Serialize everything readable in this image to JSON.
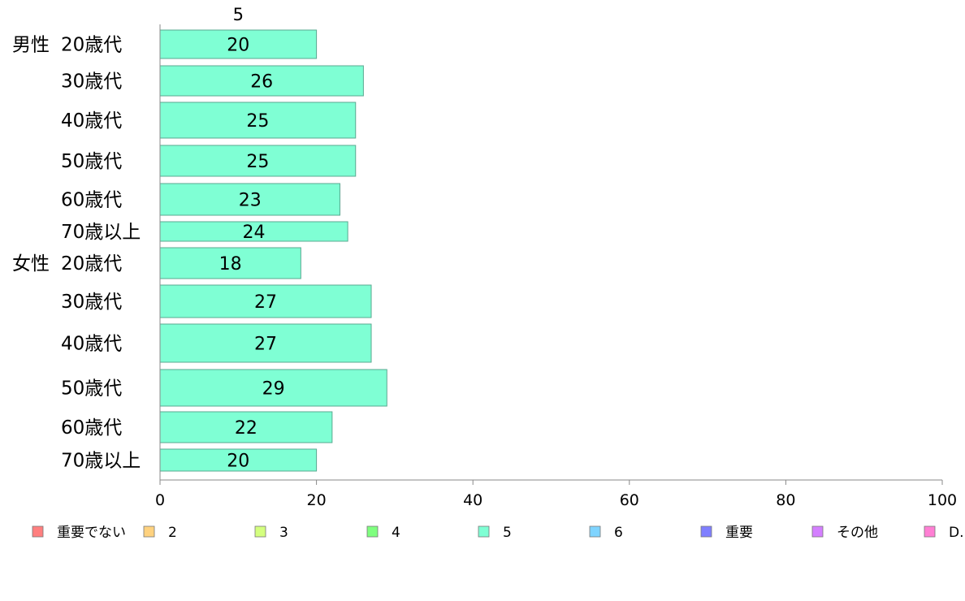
{
  "chart_data": {
    "type": "bar",
    "orientation": "horizontal",
    "stacked": true,
    "column_header": "5",
    "groups": [
      {
        "label": "男性",
        "categories": [
          "20歳代",
          "30歳代",
          "40歳代",
          "50歳代",
          "60歳代",
          "70歳以上"
        ]
      },
      {
        "label": "女性",
        "categories": [
          "20歳代",
          "30歳代",
          "40歳代",
          "50歳代",
          "60歳代",
          "70歳以上"
        ]
      }
    ],
    "series": [
      {
        "name": "重要でない",
        "color": "#ff7f7f",
        "values": [
          0,
          0,
          0,
          0,
          0,
          0,
          0,
          0,
          0,
          0,
          0,
          0
        ]
      },
      {
        "name": "2",
        "color": "#ffd27f",
        "values": [
          0,
          0,
          0,
          0,
          0,
          0,
          0,
          0,
          0,
          0,
          0,
          0
        ]
      },
      {
        "name": "3",
        "color": "#d4ff7f",
        "values": [
          0,
          0,
          0,
          0,
          0,
          0,
          0,
          0,
          0,
          0,
          0,
          0
        ]
      },
      {
        "name": "4",
        "color": "#7fff7f",
        "values": [
          0,
          0,
          0,
          0,
          0,
          0,
          0,
          0,
          0,
          0,
          0,
          0
        ]
      },
      {
        "name": "5",
        "color": "#7fffd4",
        "values": [
          20,
          26,
          25,
          25,
          23,
          24,
          18,
          27,
          27,
          29,
          22,
          20
        ]
      },
      {
        "name": "6",
        "color": "#7fd4ff",
        "values": [
          0,
          0,
          0,
          0,
          0,
          0,
          0,
          0,
          0,
          0,
          0,
          0
        ]
      },
      {
        "name": "重要",
        "color": "#7f7fff",
        "values": [
          0,
          0,
          0,
          0,
          0,
          0,
          0,
          0,
          0,
          0,
          0,
          0
        ]
      },
      {
        "name": "その他",
        "color": "#d47fff",
        "values": [
          0,
          0,
          0,
          0,
          0,
          0,
          0,
          0,
          0,
          0,
          0,
          0
        ]
      },
      {
        "name": "D.K",
        "color": "#ff7fd4",
        "values": [
          0,
          0,
          0,
          0,
          0,
          0,
          0,
          0,
          0,
          0,
          0,
          0
        ]
      }
    ],
    "data_labels": [
      "20",
      "26",
      "25",
      "25",
      "23",
      "24",
      "18",
      "27",
      "27",
      "29",
      "22",
      "20"
    ],
    "xlim": [
      0,
      100
    ],
    "xticks": [
      0,
      20,
      40,
      60,
      80,
      100
    ],
    "title": "",
    "xlabel": "",
    "ylabel": "",
    "grid": false,
    "legend_position": "bottom"
  }
}
